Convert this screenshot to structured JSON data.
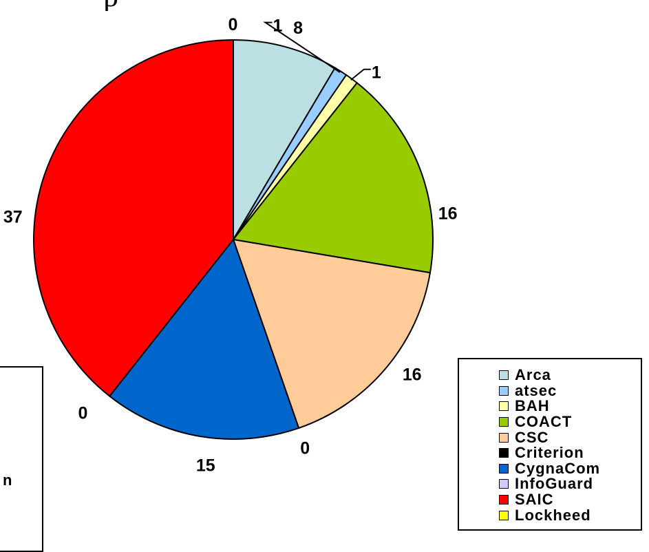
{
  "title_fragment": "p",
  "chart_data": {
    "type": "pie",
    "categories": [
      "Arca",
      "atsec",
      "BAH",
      "COACT",
      "CSC",
      "Criterion",
      "CygnaCom",
      "InfoGuard",
      "SAIC",
      "Lockheed"
    ],
    "values": [
      8,
      1,
      1,
      16,
      16,
      0,
      15,
      0,
      37,
      0
    ],
    "data_labels": [
      "8",
      "1",
      "1",
      "16",
      "16",
      "0",
      "15",
      "0",
      "37",
      "0"
    ],
    "colors": [
      "#bcdfe3",
      "#99ccff",
      "#ffffa8",
      "#99cc00",
      "#ffcc99",
      "#000000",
      "#0066cc",
      "#ccccff",
      "#ff0000",
      "#ffff00"
    ],
    "legend_position": "right"
  },
  "legend": {
    "items": [
      {
        "label": "Arca",
        "color": "#bcdfe3"
      },
      {
        "label": "atsec",
        "color": "#99ccff"
      },
      {
        "label": "BAH",
        "color": "#ffffa8"
      },
      {
        "label": "COACT",
        "color": "#99cc00"
      },
      {
        "label": "CSC",
        "color": "#ffcc99"
      },
      {
        "label": "Criterion",
        "color": "#000000"
      },
      {
        "label": "CygnaCom",
        "color": "#0066cc"
      },
      {
        "label": "InfoGuard",
        "color": "#ccccff"
      },
      {
        "label": "SAIC",
        "color": "#ff0000"
      },
      {
        "label": "Lockheed",
        "color": "#ffff00"
      }
    ]
  },
  "left_box_fragment": "n"
}
